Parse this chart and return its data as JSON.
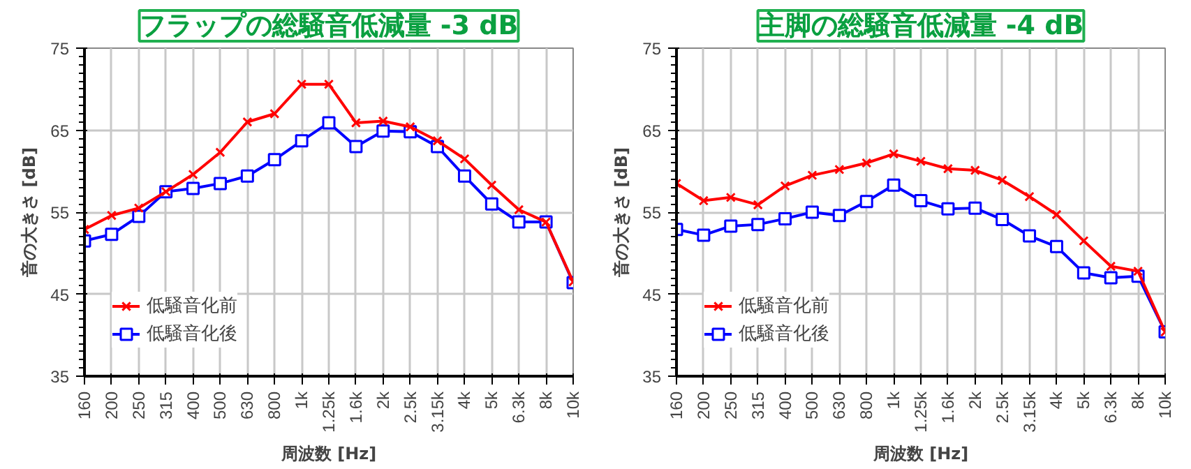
{
  "chart_data": [
    {
      "type": "line",
      "title": "フラップの総騒音低減量 -3 dB",
      "xlabel": "周波数 [Hz]",
      "ylabel": "音の大きさ [dB]",
      "categories": [
        "160",
        "200",
        "250",
        "315",
        "400",
        "500",
        "630",
        "800",
        "1k",
        "1.25k",
        "1.6k",
        "2k",
        "2.5k",
        "3.15k",
        "4k",
        "5k",
        "6.3k",
        "8k",
        "10k"
      ],
      "series": [
        {
          "name": "低騒音化前",
          "color": "#ff0000",
          "marker": "cross",
          "values": [
            52.9,
            54.6,
            55.5,
            57.5,
            59.6,
            62.3,
            66.0,
            67.0,
            70.6,
            70.6,
            65.9,
            66.1,
            65.4,
            63.7,
            61.5,
            58.3,
            55.3,
            53.8,
            46.5
          ]
        },
        {
          "name": "低騒音化後",
          "color": "#0000ff",
          "marker": "square",
          "values": [
            51.5,
            52.3,
            54.5,
            57.5,
            57.9,
            58.5,
            59.4,
            61.4,
            63.7,
            65.9,
            63.0,
            64.9,
            64.8,
            63.0,
            59.4,
            56.0,
            53.8,
            53.8,
            46.4
          ]
        }
      ],
      "ylim": [
        35,
        75
      ],
      "yticks": [
        35,
        45,
        55,
        65,
        75
      ],
      "grid": true,
      "legend": "bottom left",
      "line_style": "solid"
    },
    {
      "type": "line",
      "title": "主脚の総騒音低減量 -4 dB",
      "xlabel": "周波数 [Hz]",
      "ylabel": "音の大きさ [dB]",
      "categories": [
        "160",
        "200",
        "250",
        "315",
        "400",
        "500",
        "630",
        "800",
        "1k",
        "1.25k",
        "1.6k",
        "2k",
        "2.5k",
        "3.15k",
        "4k",
        "5k",
        "6.3k",
        "8k",
        "10k"
      ],
      "series": [
        {
          "name": "低騒音化前",
          "color": "#ff0000",
          "marker": "cross",
          "values": [
            58.5,
            56.4,
            56.8,
            55.9,
            58.2,
            59.5,
            60.2,
            61.0,
            62.1,
            61.2,
            60.3,
            60.1,
            58.9,
            56.9,
            54.7,
            51.5,
            48.4,
            47.8,
            40.4
          ]
        },
        {
          "name": "低騒音化後",
          "color": "#0000ff",
          "marker": "square",
          "values": [
            52.9,
            52.2,
            53.3,
            53.5,
            54.2,
            55.0,
            54.6,
            56.3,
            58.3,
            56.4,
            55.4,
            55.5,
            54.1,
            52.1,
            50.8,
            47.6,
            47.0,
            47.2,
            40.4
          ]
        }
      ],
      "ylim": [
        35,
        75
      ],
      "yticks": [
        35,
        45,
        55,
        65,
        75
      ],
      "grid": true,
      "legend": "bottom left",
      "line_style": "solid"
    }
  ]
}
